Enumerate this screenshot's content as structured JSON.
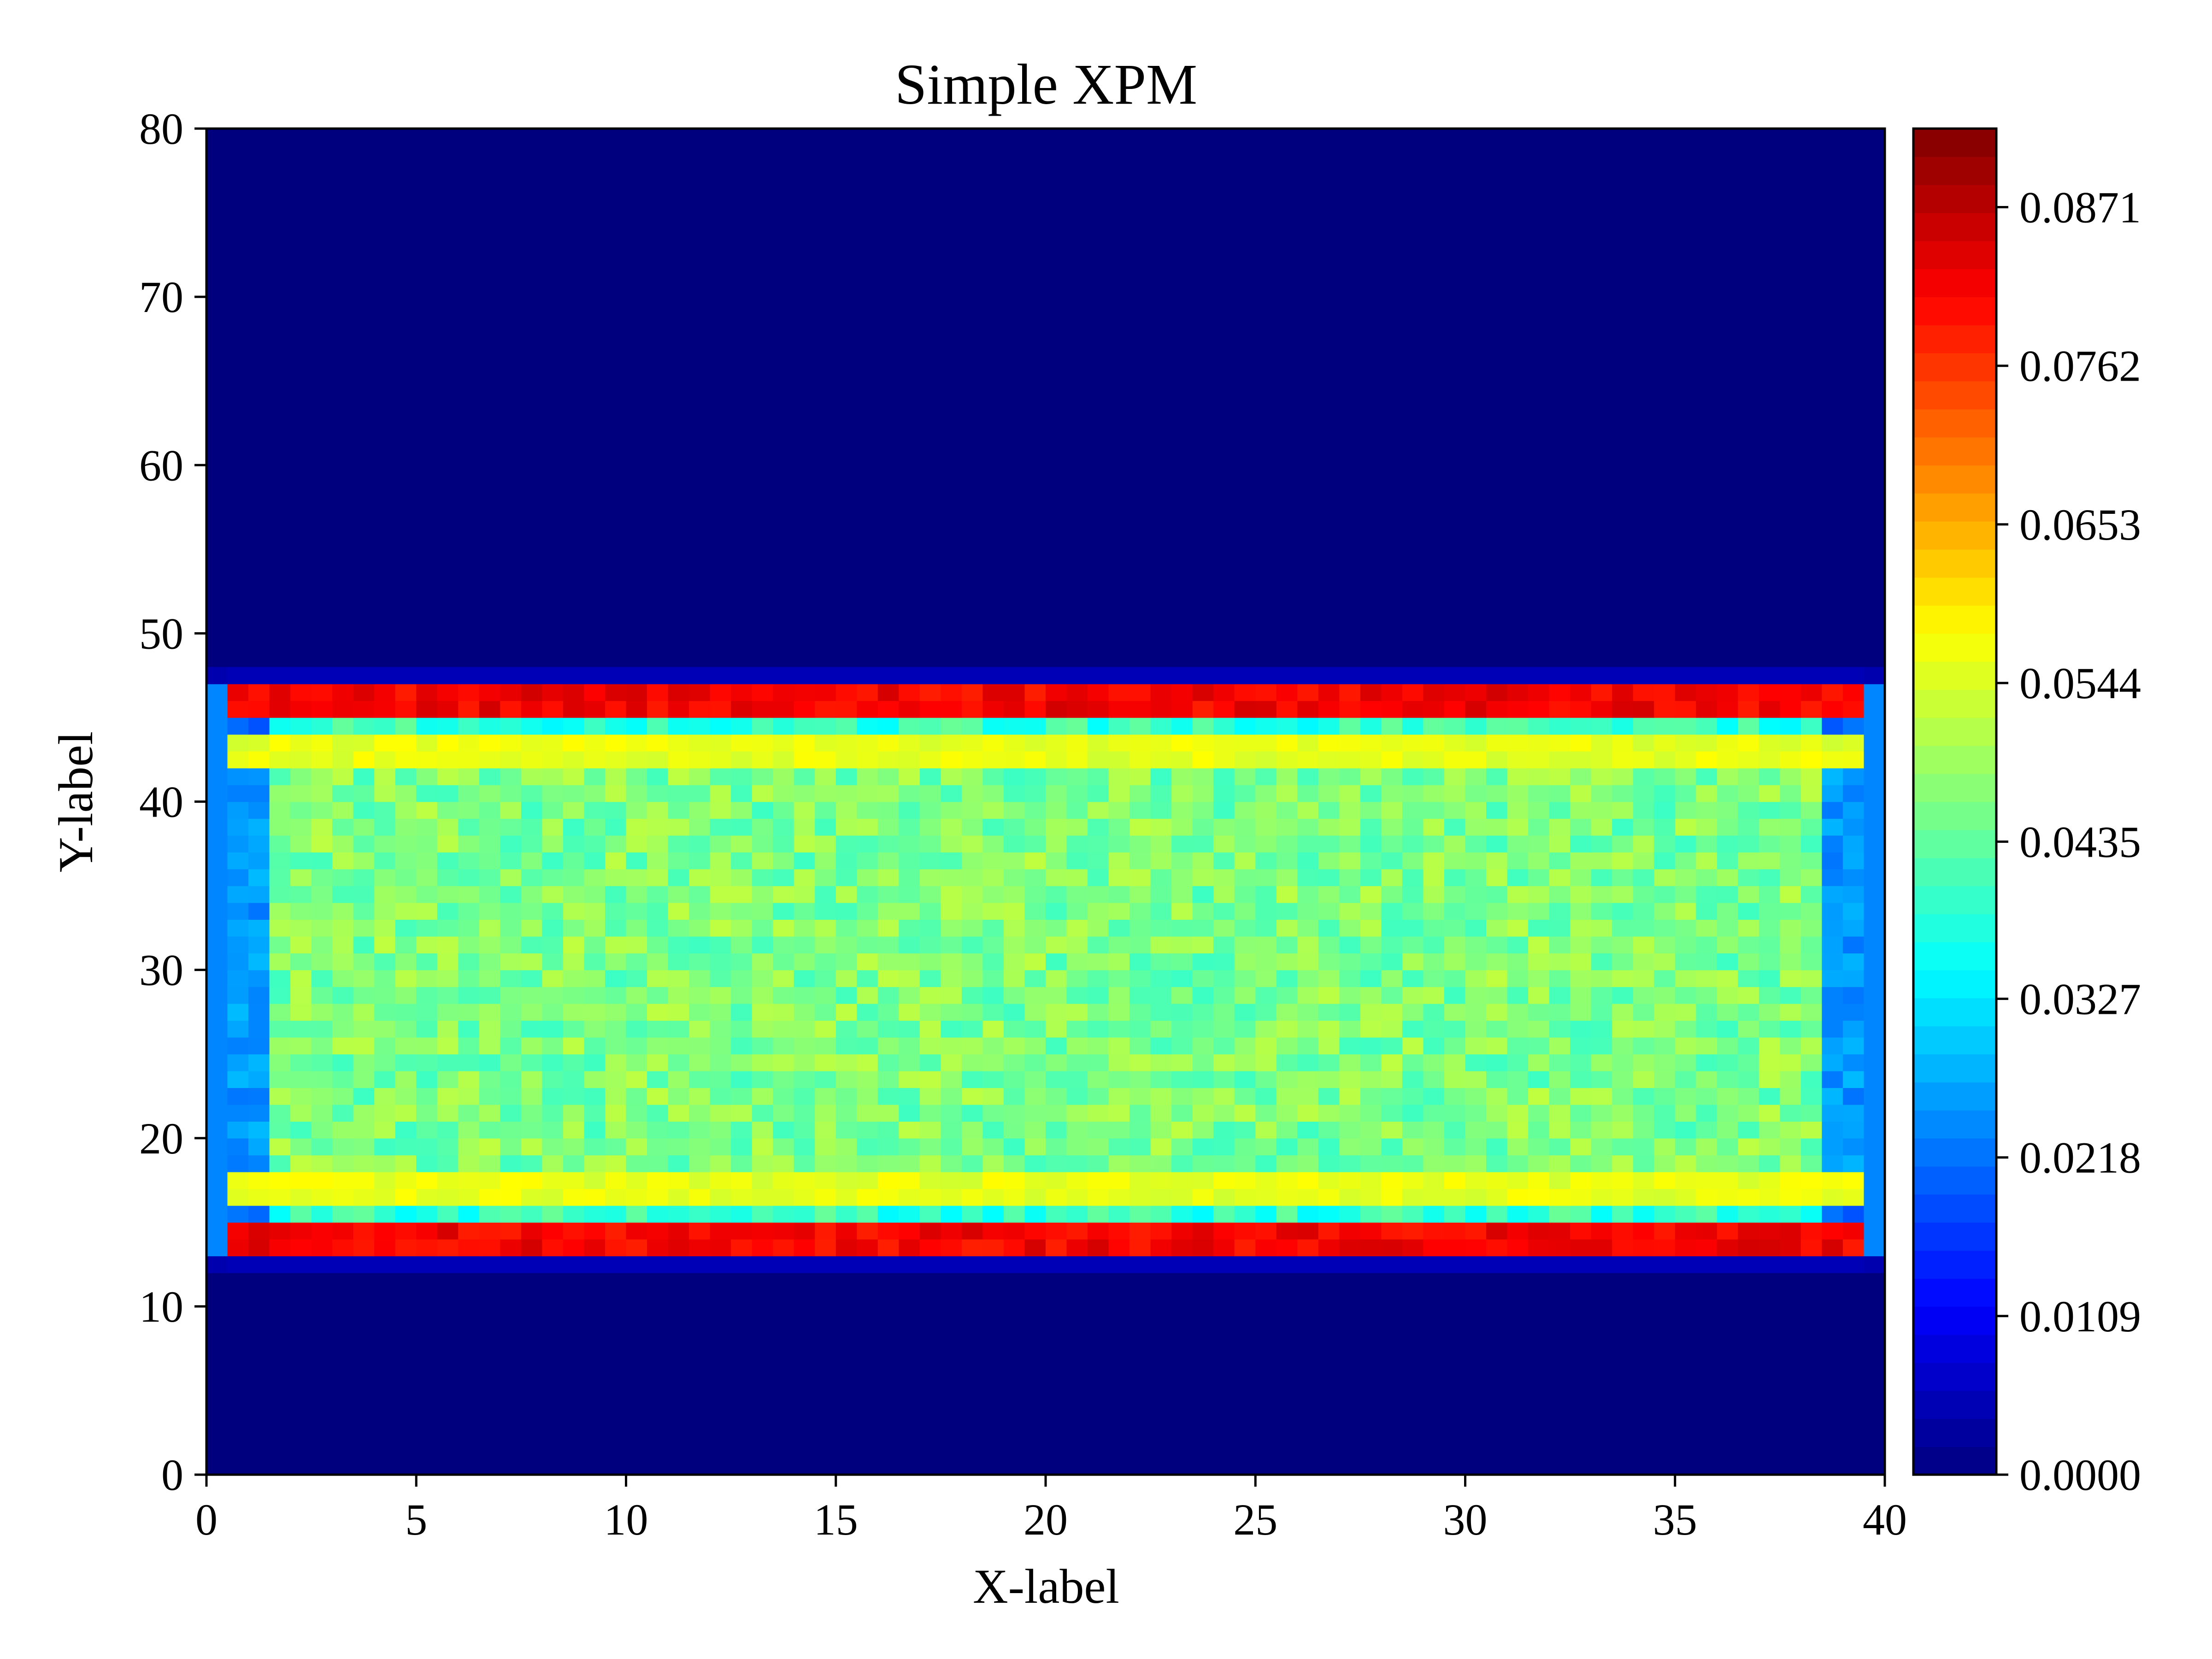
{
  "chart_data": {
    "type": "heatmap",
    "title": "Simple XPM",
    "xlabel": "X-label",
    "ylabel": "Y-label",
    "xlim": [
      0,
      40
    ],
    "ylim": [
      0,
      80
    ],
    "x_ticks": [
      "0",
      "5",
      "10",
      "15",
      "20",
      "25",
      "30",
      "35",
      "40"
    ],
    "y_ticks": [
      "0",
      "10",
      "20",
      "30",
      "40",
      "50",
      "60",
      "70",
      "80"
    ],
    "colormap": "jet",
    "colorbar": {
      "range": [
        0.0,
        0.0925
      ],
      "ticks": [
        "0.0000",
        "0.0109",
        "0.0218",
        "0.0327",
        "0.0435",
        "0.0544",
        "0.0653",
        "0.0762",
        "0.0871"
      ]
    },
    "background_value": 0.0,
    "band": {
      "x_range": [
        1,
        38
      ],
      "y_range": [
        14,
        46
      ],
      "interior_value_range": [
        0.04,
        0.052
      ]
    },
    "high_value_rows": [
      {
        "y": 46,
        "value": 0.085
      },
      {
        "y": 14,
        "value": 0.085
      },
      {
        "y": 43,
        "value": 0.058
      },
      {
        "y": 17,
        "value": 0.058
      }
    ],
    "legend": "none",
    "grid": false
  }
}
